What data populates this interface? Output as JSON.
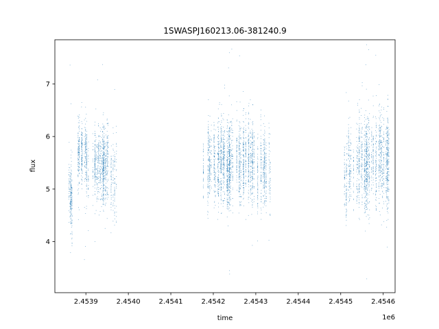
{
  "chart_data": {
    "type": "scatter",
    "title": "1SWASPJ160213.06-381240.9",
    "xlabel": "time",
    "ylabel": "flux",
    "x_offset_label": "1e6",
    "xlim": [
      2453827,
      2454628
    ],
    "ylim": [
      3.03,
      7.84
    ],
    "x_ticks": [
      2453900,
      2454000,
      2454100,
      2454200,
      2454300,
      2454400,
      2454500,
      2454600
    ],
    "x_tick_labels": [
      "2.4539",
      "2.4540",
      "2.4541",
      "2.4542",
      "2.4543",
      "2.4544",
      "2.4545",
      "2.4546"
    ],
    "y_ticks": [
      4,
      5,
      6,
      7
    ],
    "y_tick_labels": [
      "4",
      "5",
      "6",
      "7"
    ],
    "grid": false,
    "marker_color": "#1f77b4",
    "observing_seasons": [
      {
        "x_start": 2453855,
        "x_end": 2453868,
        "median_flux": 4.95,
        "spread": 0.28,
        "density": 1.0
      },
      {
        "x_start": 2453880,
        "x_end": 2453905,
        "median_flux": 5.55,
        "spread": 0.3,
        "density": 1.0
      },
      {
        "x_start": 2453905,
        "x_end": 2453962,
        "median_flux": 5.45,
        "spread": 0.33,
        "density": 0.85
      },
      {
        "x_start": 2453962,
        "x_end": 2453972,
        "median_flux": 5.3,
        "spread": 0.45,
        "density": 0.15
      },
      {
        "x_start": 2454172,
        "x_end": 2454215,
        "median_flux": 5.45,
        "spread": 0.35,
        "density": 0.75
      },
      {
        "x_start": 2454215,
        "x_end": 2454300,
        "median_flux": 5.5,
        "spread": 0.38,
        "density": 1.0
      },
      {
        "x_start": 2454300,
        "x_end": 2454335,
        "median_flux": 5.45,
        "spread": 0.35,
        "density": 0.6
      },
      {
        "x_start": 2454505,
        "x_end": 2454540,
        "median_flux": 5.35,
        "spread": 0.38,
        "density": 0.6
      },
      {
        "x_start": 2454540,
        "x_end": 2454617,
        "median_flux": 5.5,
        "spread": 0.42,
        "density": 1.0
      }
    ]
  }
}
